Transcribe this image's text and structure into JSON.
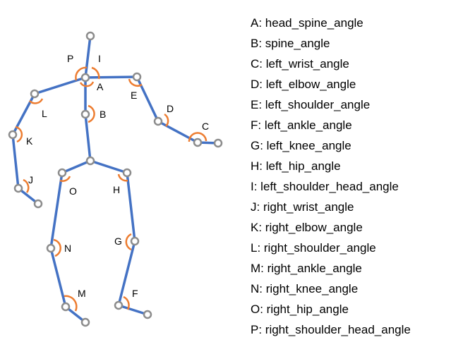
{
  "colors": {
    "bone": "#4472c4",
    "angle_arc": "#ed7d31",
    "joint_outline": "#8c8c8c",
    "joint_fill": "#ffffff"
  },
  "legend": [
    {
      "letter": "A",
      "text": "A: head_spine_angle"
    },
    {
      "letter": "B",
      "text": "B: spine_angle"
    },
    {
      "letter": "C",
      "text": "C: left_wrist_angle"
    },
    {
      "letter": "D",
      "text": "D: left_elbow_angle"
    },
    {
      "letter": "E",
      "text": "E: left_shoulder_angle"
    },
    {
      "letter": "F",
      "text": "F: left_ankle_angle"
    },
    {
      "letter": "G",
      "text": "G: left_knee_angle"
    },
    {
      "letter": "H",
      "text": "H: left_hip_angle"
    },
    {
      "letter": "I",
      "text": "I: left_shoulder_head_angle"
    },
    {
      "letter": "J",
      "text": "J: right_wrist_angle"
    },
    {
      "letter": "K",
      "text": "K: right_elbow_angle"
    },
    {
      "letter": "L",
      "text": "L: right_shoulder_angle"
    },
    {
      "letter": "M",
      "text": "M: right_ankle_angle"
    },
    {
      "letter": "N",
      "text": "N: right_knee_angle"
    },
    {
      "letter": "O",
      "text": "O: right_hip_angle"
    },
    {
      "letter": "P",
      "text": "P: right_shoulder_head_angle"
    }
  ]
}
